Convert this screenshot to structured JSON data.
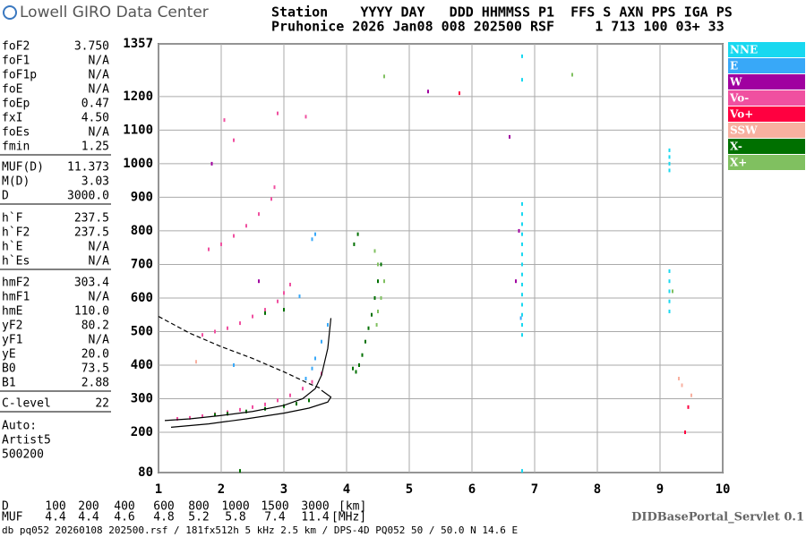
{
  "header": {
    "logo": "Lowell GIRO Data Center",
    "row1": "Station    YYYY DAY   DDD HHMMSS P1  FFS S AXN PPS IGA PS",
    "row2": "Pruhonice 2026 Jan08 008 202500 RSF     1 713 100 03+ 33"
  },
  "left_panel": {
    "groups": [
      [
        [
          "foF2",
          "3.750"
        ],
        [
          "foF1",
          "N/A"
        ],
        [
          "foF1p",
          "N/A"
        ],
        [
          "foE",
          "N/A"
        ],
        [
          "foEp",
          "0.47"
        ],
        [
          "fxI",
          "4.50"
        ],
        [
          "foEs",
          "N/A"
        ],
        [
          "fmin",
          "1.25"
        ]
      ],
      [
        [
          "MUF(D)",
          "11.373"
        ],
        [
          "M(D)",
          "3.03"
        ],
        [
          "D",
          "3000.0"
        ]
      ],
      [
        [
          "h`F",
          "237.5"
        ],
        [
          "h`F2",
          "237.5"
        ],
        [
          "h`E",
          "N/A"
        ],
        [
          "h`Es",
          "N/A"
        ]
      ],
      [
        [
          "hmF2",
          "303.4"
        ],
        [
          "hmF1",
          "N/A"
        ],
        [
          "hmE",
          "110.0"
        ],
        [
          "yF2",
          "80.2"
        ],
        [
          "yF1",
          "N/A"
        ],
        [
          "yE",
          "20.0"
        ],
        [
          "B0",
          "73.5"
        ],
        [
          "B1",
          "2.88"
        ]
      ],
      [
        [
          "C-level",
          "22"
        ]
      ]
    ],
    "auto": [
      "Auto:",
      "Artist5",
      "500200"
    ]
  },
  "distance_table": {
    "D_label": "D",
    "D": [
      100,
      200,
      400,
      600,
      800,
      1000,
      1500,
      3000
    ],
    "D_unit": "[km]",
    "MUF_label": "MUF",
    "MUF": [
      4.4,
      4.4,
      4.6,
      4.8,
      5.2,
      5.8,
      7.4,
      11.4
    ],
    "MUF_unit": "[MHz]"
  },
  "footer": {
    "file": "db pq052 20260108 202500.rsf / 181fx512h 5 kHz 2.5 km / DPS-4D PQ052 50 / 50.0 N 14.6 E",
    "servlet": "DIDBasePortal_Servlet 0.1"
  },
  "chart_data": {
    "type": "scatter",
    "grid": true,
    "xlim": [
      1,
      10
    ],
    "xticks": [
      1,
      2,
      3,
      4,
      5,
      6,
      7,
      8,
      9,
      10
    ],
    "ylim": [
      80,
      1357
    ],
    "yticks": [
      80,
      200,
      300,
      400,
      500,
      600,
      700,
      800,
      900,
      1000,
      1100,
      1200,
      1357
    ],
    "series": [
      {
        "name": "NNE",
        "color": "#18d8f0",
        "x": [
          6.8,
          6.8,
          6.8,
          6.8,
          6.8,
          6.8,
          6.8,
          6.8,
          6.8,
          6.8,
          6.8,
          6.8,
          6.8,
          6.8,
          9.15,
          9.15,
          9.15,
          9.15,
          9.15,
          9.15,
          9.15,
          9.15,
          9.15,
          6.8,
          6.8,
          6.8
        ],
        "y": [
          490,
          520,
          550,
          580,
          610,
          640,
          670,
          700,
          730,
          760,
          790,
          820,
          850,
          880,
          560,
          590,
          620,
          650,
          680,
          980,
          1000,
          1020,
          1040,
          85,
          1250,
          1320
        ]
      },
      {
        "name": "E",
        "color": "#38a8f8",
        "x": [
          3.35,
          3.45,
          3.5,
          3.6,
          3.7,
          2.2,
          3.25,
          6.78,
          3.45,
          3.5
        ],
        "y": [
          360,
          390,
          420,
          470,
          520,
          400,
          605,
          540,
          775,
          790
        ]
      },
      {
        "name": "W",
        "color": "#a000a0",
        "x": [
          1.85,
          2.6,
          6.75,
          5.3,
          6.6,
          6.7
        ],
        "y": [
          1000,
          650,
          800,
          1215,
          1080,
          650
        ]
      },
      {
        "name": "Vo-",
        "color": "#f050a0",
        "x": [
          1.3,
          1.5,
          1.7,
          1.9,
          2.1,
          2.3,
          2.5,
          2.7,
          2.9,
          3.1,
          3.3,
          3.45,
          3.6,
          1.7,
          1.9,
          2.1,
          2.3,
          2.5,
          2.7,
          2.9,
          3.0,
          3.1,
          1.8,
          2.0,
          2.2,
          2.4,
          2.6,
          2.8,
          2.85,
          2.05,
          2.2,
          2.9,
          3.35
        ],
        "y": [
          240,
          243,
          248,
          254,
          260,
          267,
          275,
          283,
          295,
          310,
          330,
          350,
          375,
          490,
          500,
          510,
          525,
          545,
          565,
          590,
          615,
          640,
          745,
          760,
          785,
          815,
          850,
          895,
          930,
          1130,
          1070,
          1150,
          1140
        ]
      },
      {
        "name": "Vo+",
        "color": "#ff0040",
        "x": [
          9.45,
          9.4,
          5.8
        ],
        "y": [
          275,
          200,
          1210
        ]
      },
      {
        "name": "SSW",
        "color": "#f8b0a0",
        "x": [
          9.3,
          9.35,
          9.5,
          1.6
        ],
        "y": [
          360,
          340,
          310,
          410
        ]
      },
      {
        "name": "X-",
        "color": "#007000",
        "x": [
          1.9,
          2.1,
          2.4,
          2.7,
          3.0,
          3.2,
          3.4,
          4.15,
          4.2,
          4.25,
          4.3,
          4.35,
          4.4,
          4.45,
          4.5,
          4.55,
          4.12,
          4.18,
          4.1,
          3.0,
          2.7,
          2.3
        ],
        "y": [
          252,
          255,
          262,
          270,
          278,
          285,
          295,
          380,
          400,
          430,
          470,
          510,
          550,
          600,
          650,
          700,
          760,
          790,
          390,
          565,
          555,
          85
        ]
      },
      {
        "name": "X+",
        "color": "#80c060",
        "x": [
          4.5,
          4.55,
          4.6,
          4.5,
          4.45,
          4.6,
          4.48,
          7.6,
          9.2
        ],
        "y": [
          560,
          600,
          650,
          700,
          740,
          1260,
          520,
          1265,
          620
        ]
      }
    ],
    "model_curves": [
      {
        "dash": false,
        "x": [
          1.1,
          1.5,
          2.0,
          2.5,
          3.0,
          3.3,
          3.5,
          3.6,
          3.7,
          3.75
        ],
        "y": [
          235,
          240,
          250,
          262,
          280,
          300,
          330,
          370,
          450,
          540
        ]
      },
      {
        "dash": false,
        "x": [
          1.2,
          1.8,
          2.4,
          3.0,
          3.4,
          3.7,
          3.75,
          3.6
        ],
        "y": [
          215,
          225,
          240,
          257,
          272,
          290,
          305,
          325
        ]
      },
      {
        "dash": true,
        "x": [
          1.0,
          1.5,
          2.0,
          2.5,
          3.0,
          3.4,
          3.6
        ],
        "y": [
          545,
          495,
          455,
          420,
          380,
          345,
          330
        ]
      }
    ]
  }
}
